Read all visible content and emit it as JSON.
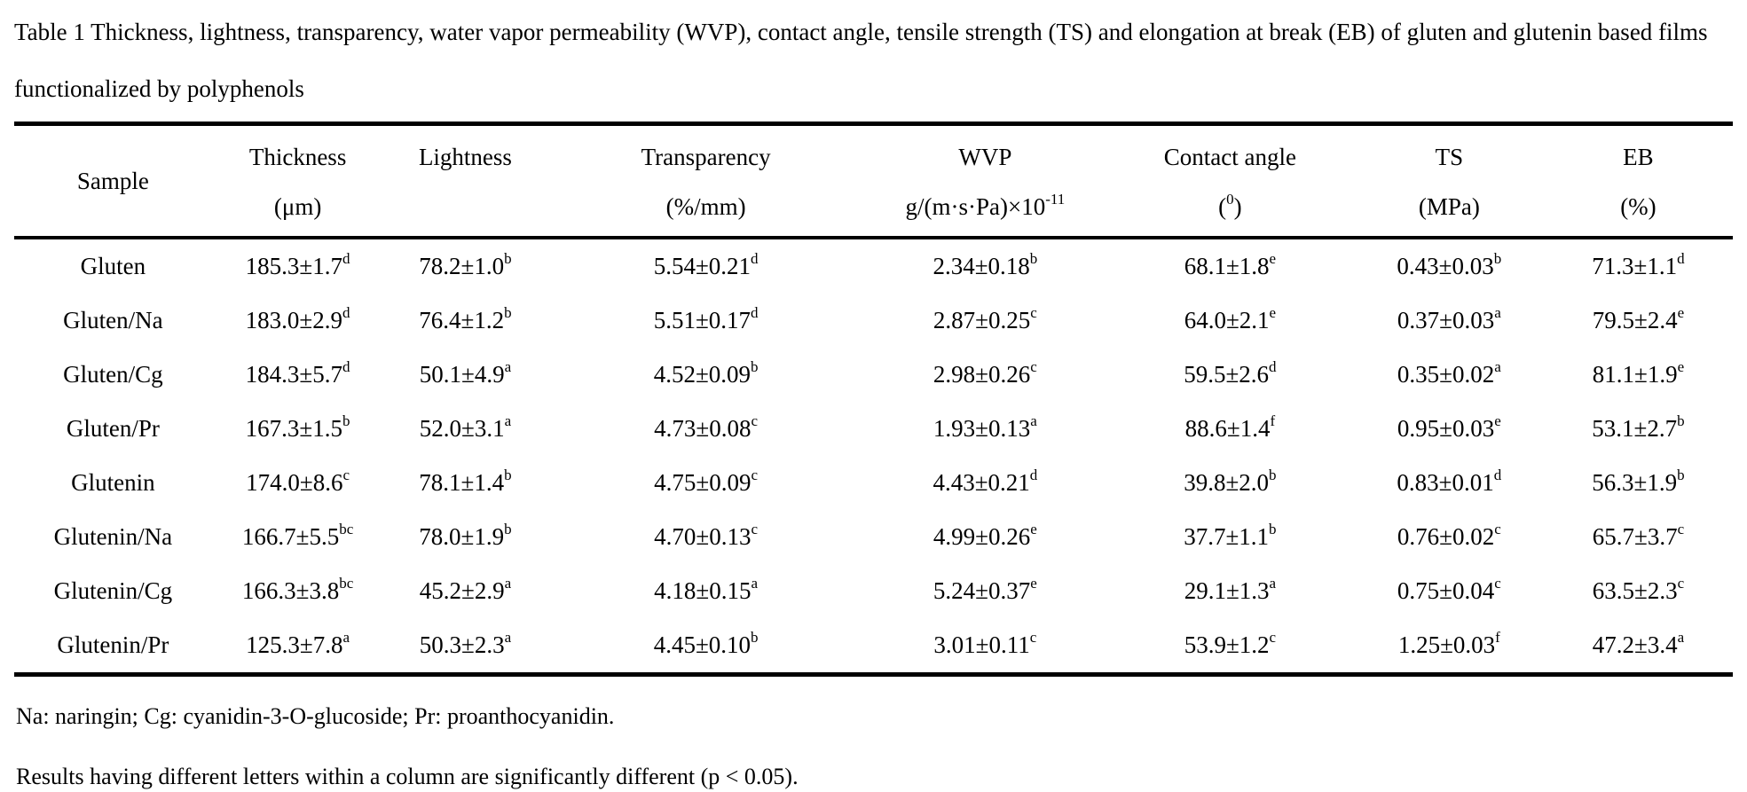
{
  "title": "Table 1 Thickness, lightness, transparency, water vapor permeability (WVP), contact angle, tensile strength (TS) and elongation at break (EB) of gluten and glutenin based films functionalized by polyphenols",
  "table": {
    "columns": [
      {
        "key": "sample",
        "label": "Sample",
        "unit": {
          "pre": ""
        }
      },
      {
        "key": "thickness",
        "label": "Thickness",
        "unit": {
          "pre": "(μm)"
        }
      },
      {
        "key": "lightness",
        "label": "Lightness",
        "unit": {
          "pre": ""
        }
      },
      {
        "key": "transparency",
        "label": "Transparency",
        "unit": {
          "pre": "(%/mm)"
        }
      },
      {
        "key": "wvp",
        "label": "WVP",
        "unit": {
          "pre": "g/(m·s·Pa)×10",
          "sup": "-11"
        }
      },
      {
        "key": "contact-angle",
        "label": "Contact angle",
        "unit": {
          "pre": "(",
          "sup": "0",
          "post": ")"
        }
      },
      {
        "key": "ts",
        "label": "TS",
        "unit": {
          "pre": "(MPa)"
        }
      },
      {
        "key": "eb",
        "label": "EB",
        "unit": {
          "pre": "(%)"
        }
      }
    ],
    "rows": [
      {
        "sample": "Gluten",
        "cells": [
          {
            "v": "185.3±1.7",
            "s": "d"
          },
          {
            "v": "78.2±1.0",
            "s": "b"
          },
          {
            "v": "5.54±0.21",
            "s": "d"
          },
          {
            "v": "2.34±0.18",
            "s": "b"
          },
          {
            "v": "68.1±1.8",
            "s": "e"
          },
          {
            "v": "0.43±0.03",
            "s": "b"
          },
          {
            "v": "71.3±1.1",
            "s": "d"
          }
        ]
      },
      {
        "sample": "Gluten/Na",
        "cells": [
          {
            "v": "183.0±2.9",
            "s": "d"
          },
          {
            "v": "76.4±1.2",
            "s": "b"
          },
          {
            "v": "5.51±0.17",
            "s": "d"
          },
          {
            "v": "2.87±0.25",
            "s": "c"
          },
          {
            "v": "64.0±2.1",
            "s": "e"
          },
          {
            "v": "0.37±0.03",
            "s": "a"
          },
          {
            "v": "79.5±2.4",
            "s": "e"
          }
        ]
      },
      {
        "sample": "Gluten/Cg",
        "cells": [
          {
            "v": "184.3±5.7",
            "s": "d"
          },
          {
            "v": "50.1±4.9",
            "s": "a"
          },
          {
            "v": "4.52±0.09",
            "s": "b"
          },
          {
            "v": "2.98±0.26",
            "s": "c"
          },
          {
            "v": "59.5±2.6",
            "s": "d"
          },
          {
            "v": "0.35±0.02",
            "s": "a"
          },
          {
            "v": "81.1±1.9",
            "s": "e"
          }
        ]
      },
      {
        "sample": "Gluten/Pr",
        "cells": [
          {
            "v": "167.3±1.5",
            "s": "b"
          },
          {
            "v": "52.0±3.1",
            "s": "a"
          },
          {
            "v": "4.73±0.08",
            "s": "c"
          },
          {
            "v": "1.93±0.13",
            "s": "a"
          },
          {
            "v": "88.6±1.4",
            "s": "f"
          },
          {
            "v": "0.95±0.03",
            "s": "e"
          },
          {
            "v": "53.1±2.7",
            "s": "b"
          }
        ]
      },
      {
        "sample": "Glutenin",
        "cells": [
          {
            "v": "174.0±8.6",
            "s": "c"
          },
          {
            "v": "78.1±1.4",
            "s": "b"
          },
          {
            "v": "4.75±0.09",
            "s": "c"
          },
          {
            "v": "4.43±0.21",
            "s": "d"
          },
          {
            "v": "39.8±2.0",
            "s": "b"
          },
          {
            "v": "0.83±0.01",
            "s": "d"
          },
          {
            "v": "56.3±1.9",
            "s": "b"
          }
        ]
      },
      {
        "sample": "Glutenin/Na",
        "cells": [
          {
            "v": "166.7±5.5",
            "s": "bc"
          },
          {
            "v": "78.0±1.9",
            "s": "b"
          },
          {
            "v": "4.70±0.13",
            "s": "c"
          },
          {
            "v": "4.99±0.26",
            "s": "e"
          },
          {
            "v": "37.7±1.1",
            "s": "b"
          },
          {
            "v": "0.76±0.02",
            "s": "c"
          },
          {
            "v": "65.7±3.7",
            "s": "c"
          }
        ]
      },
      {
        "sample": "Glutenin/Cg",
        "cells": [
          {
            "v": "166.3±3.8",
            "s": "bc"
          },
          {
            "v": "45.2±2.9",
            "s": "a"
          },
          {
            "v": "4.18±0.15",
            "s": "a"
          },
          {
            "v": "5.24±0.37",
            "s": "e"
          },
          {
            "v": "29.1±1.3",
            "s": "a"
          },
          {
            "v": "0.75±0.04",
            "s": "c"
          },
          {
            "v": "63.5±2.3",
            "s": "c"
          }
        ]
      },
      {
        "sample": "Glutenin/Pr",
        "cells": [
          {
            "v": "125.3±7.8",
            "s": "a"
          },
          {
            "v": "50.3±2.3",
            "s": "a"
          },
          {
            "v": "4.45±0.10",
            "s": "b"
          },
          {
            "v": "3.01±0.11",
            "s": "c"
          },
          {
            "v": "53.9±1.2",
            "s": "c"
          },
          {
            "v": "1.25±0.03",
            "s": "f"
          },
          {
            "v": "47.2±3.4",
            "s": "a"
          }
        ]
      }
    ]
  },
  "footnotes": [
    "Na: naringin; Cg: cyanidin-3-O-glucoside; Pr: proanthocyanidin.",
    "Results having different letters within a column are significantly different (p < 0.05)."
  ]
}
